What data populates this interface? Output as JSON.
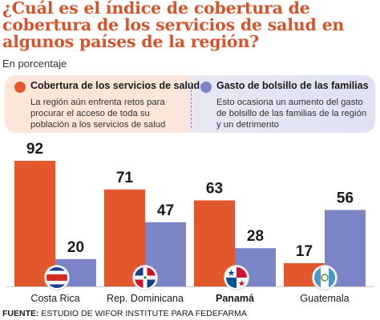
{
  "title": "¿Cuál es el índice de cobertura de cobertura de los servicios de salud en algunos países de la región?",
  "subtitle": "En porcentaje",
  "legend": {
    "series1": {
      "title": "Cobertura de los servicios de salud",
      "text": "La región aún enfrenta retos para procurar el acceso de toda su población a los servicios de salud",
      "color": "#e2582c"
    },
    "series2": {
      "title": "Gasto de bolsillo de las familias",
      "text": "Esto ocasiona un aumento del gasto de bolsillo de las familias de la región y un detrimento",
      "color": "#7a84c7"
    }
  },
  "chart_data": {
    "type": "bar",
    "categories": [
      "Costa Rica",
      "Rep. Dominicana",
      "Panamá",
      "Guatemala"
    ],
    "highlight_category": "Panamá",
    "series": [
      {
        "name": "Cobertura de los servicios de salud",
        "values": [
          92,
          71,
          63,
          17
        ],
        "color": "#e2582c"
      },
      {
        "name": "Gasto de bolsillo de las familias",
        "values": [
          20,
          47,
          28,
          56
        ],
        "color": "#7a84c7"
      }
    ],
    "ylim": [
      0,
      92
    ],
    "xlabel": "",
    "ylabel": "",
    "legend": "top"
  },
  "flags": [
    {
      "country": "Costa Rica",
      "icon": "costa-rica-flag-icon"
    },
    {
      "country": "Rep. Dominicana",
      "icon": "dominican-republic-flag-icon"
    },
    {
      "country": "Panamá",
      "icon": "panama-flag-icon"
    },
    {
      "country": "Guatemala",
      "icon": "guatemala-flag-icon"
    }
  ],
  "source": {
    "label": "FUENTE:",
    "text": "ESTUDIO DE WIFOR INSTITUTE PARA FEDEFARMA"
  }
}
